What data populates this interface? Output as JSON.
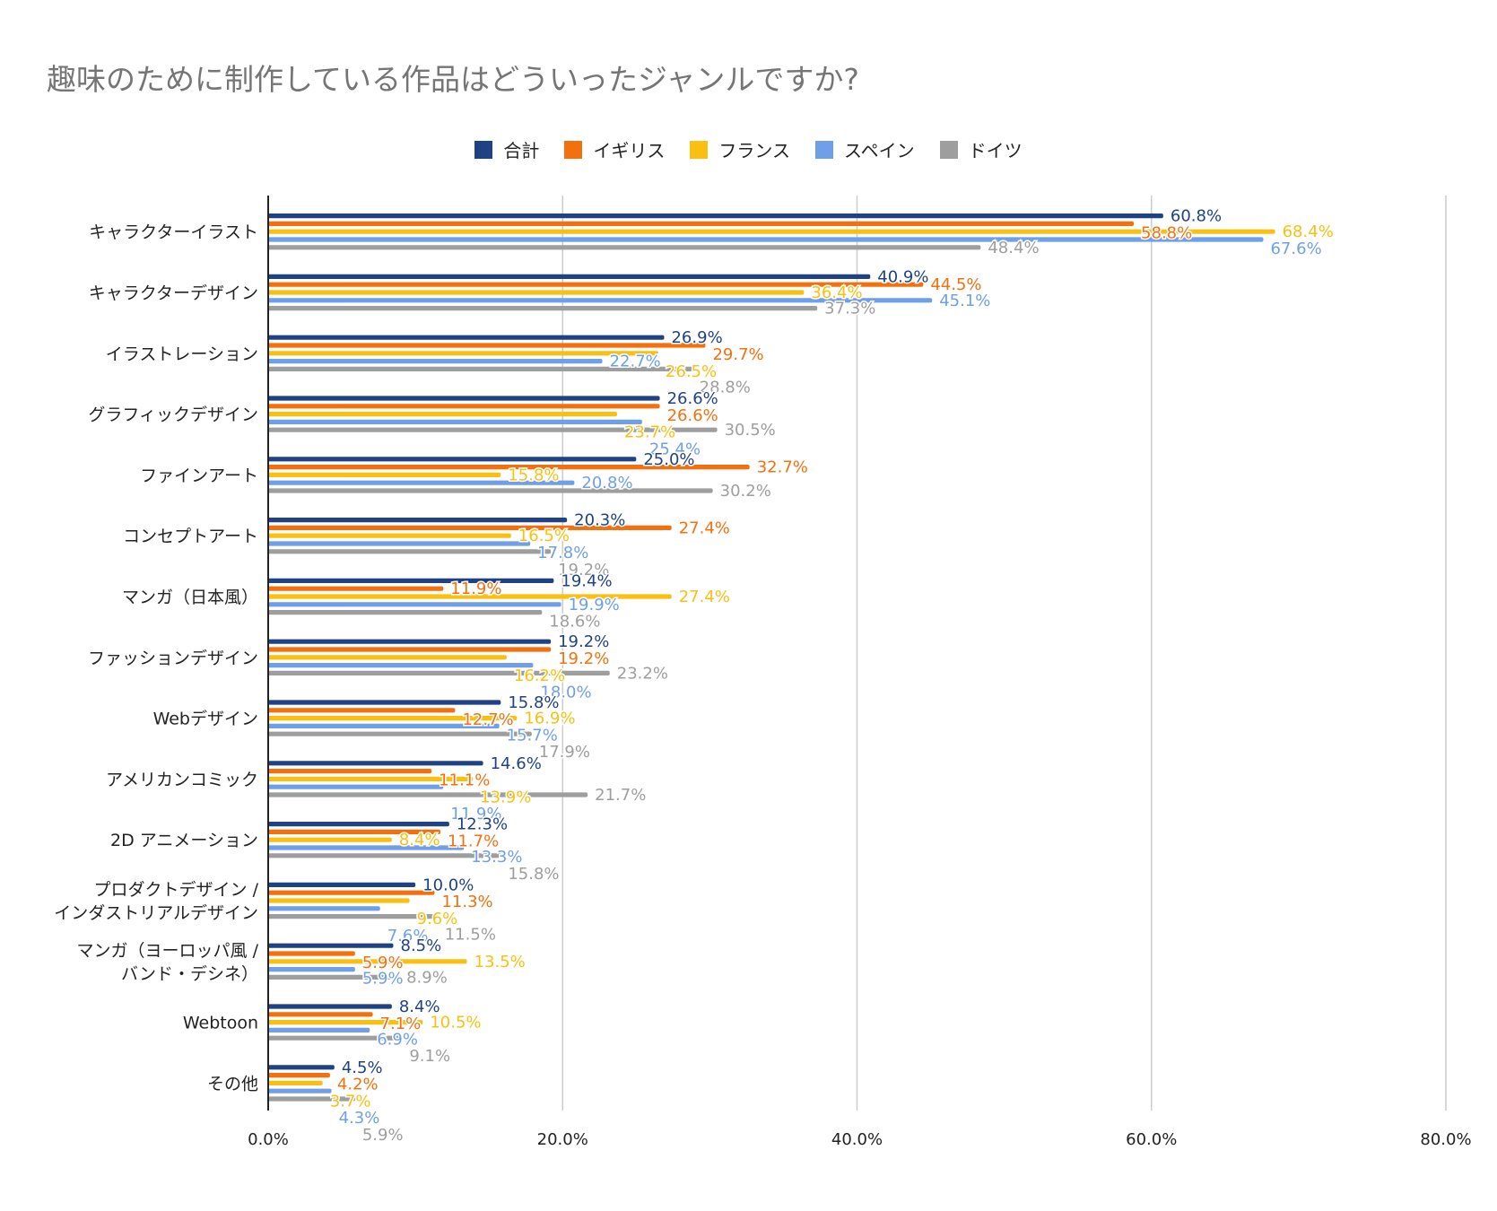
{
  "chart_data": {
    "type": "bar",
    "orientation": "horizontal",
    "title": "趣味のために制作している作品はどういったジャンルですか?",
    "categories": [
      [
        "キャラクターイラスト"
      ],
      [
        "キャラクターデザイン"
      ],
      [
        "イラストレーション"
      ],
      [
        "グラフィックデザイン"
      ],
      [
        "ファインアート"
      ],
      [
        "コンセプトアート"
      ],
      [
        "マンガ（日本風）"
      ],
      [
        "ファッションデザイン"
      ],
      [
        "Webデザイン"
      ],
      [
        "アメリカンコミック"
      ],
      [
        "2D アニメーション"
      ],
      [
        "プロダクトデザイン /",
        "インダストリアルデザイン"
      ],
      [
        "マンガ（ヨーロッパ風 /",
        "バンド・デシネ）"
      ],
      [
        "Webtoon"
      ],
      [
        "その他"
      ]
    ],
    "series": [
      {
        "name": "合計",
        "color": "#1f4285",
        "values": [
          60.8,
          40.9,
          26.9,
          26.6,
          25.0,
          20.3,
          19.4,
          19.2,
          15.8,
          14.6,
          12.3,
          10.0,
          8.5,
          8.4,
          4.5
        ]
      },
      {
        "name": "イギリス",
        "color": "#f4700f",
        "values": [
          58.8,
          44.5,
          29.7,
          26.6,
          32.7,
          27.4,
          11.9,
          19.2,
          12.7,
          11.1,
          11.7,
          11.3,
          5.9,
          7.1,
          4.2
        ]
      },
      {
        "name": "フランス",
        "color": "#f9c012",
        "values": [
          68.4,
          36.4,
          26.5,
          23.7,
          15.8,
          16.5,
          27.4,
          16.2,
          16.9,
          13.9,
          8.4,
          9.6,
          13.5,
          10.5,
          3.7
        ]
      },
      {
        "name": "スペイン",
        "color": "#6f9fe8",
        "values": [
          67.6,
          45.1,
          22.7,
          25.4,
          20.8,
          17.8,
          19.9,
          18.0,
          15.7,
          11.9,
          13.3,
          7.6,
          5.9,
          6.9,
          4.3
        ]
      },
      {
        "name": "ドイツ",
        "color": "#9e9e9e",
        "values": [
          48.4,
          37.3,
          28.8,
          30.5,
          30.2,
          19.2,
          18.6,
          23.2,
          17.9,
          21.7,
          15.8,
          11.5,
          8.9,
          9.1,
          5.9
        ]
      }
    ],
    "x_ticks": [
      "0.0%",
      "20.0%",
      "40.0%",
      "60.0%",
      "80.0%"
    ],
    "xlim": [
      0,
      80
    ],
    "value_suffix": "%",
    "grid": true,
    "legend_position": "top-center"
  }
}
